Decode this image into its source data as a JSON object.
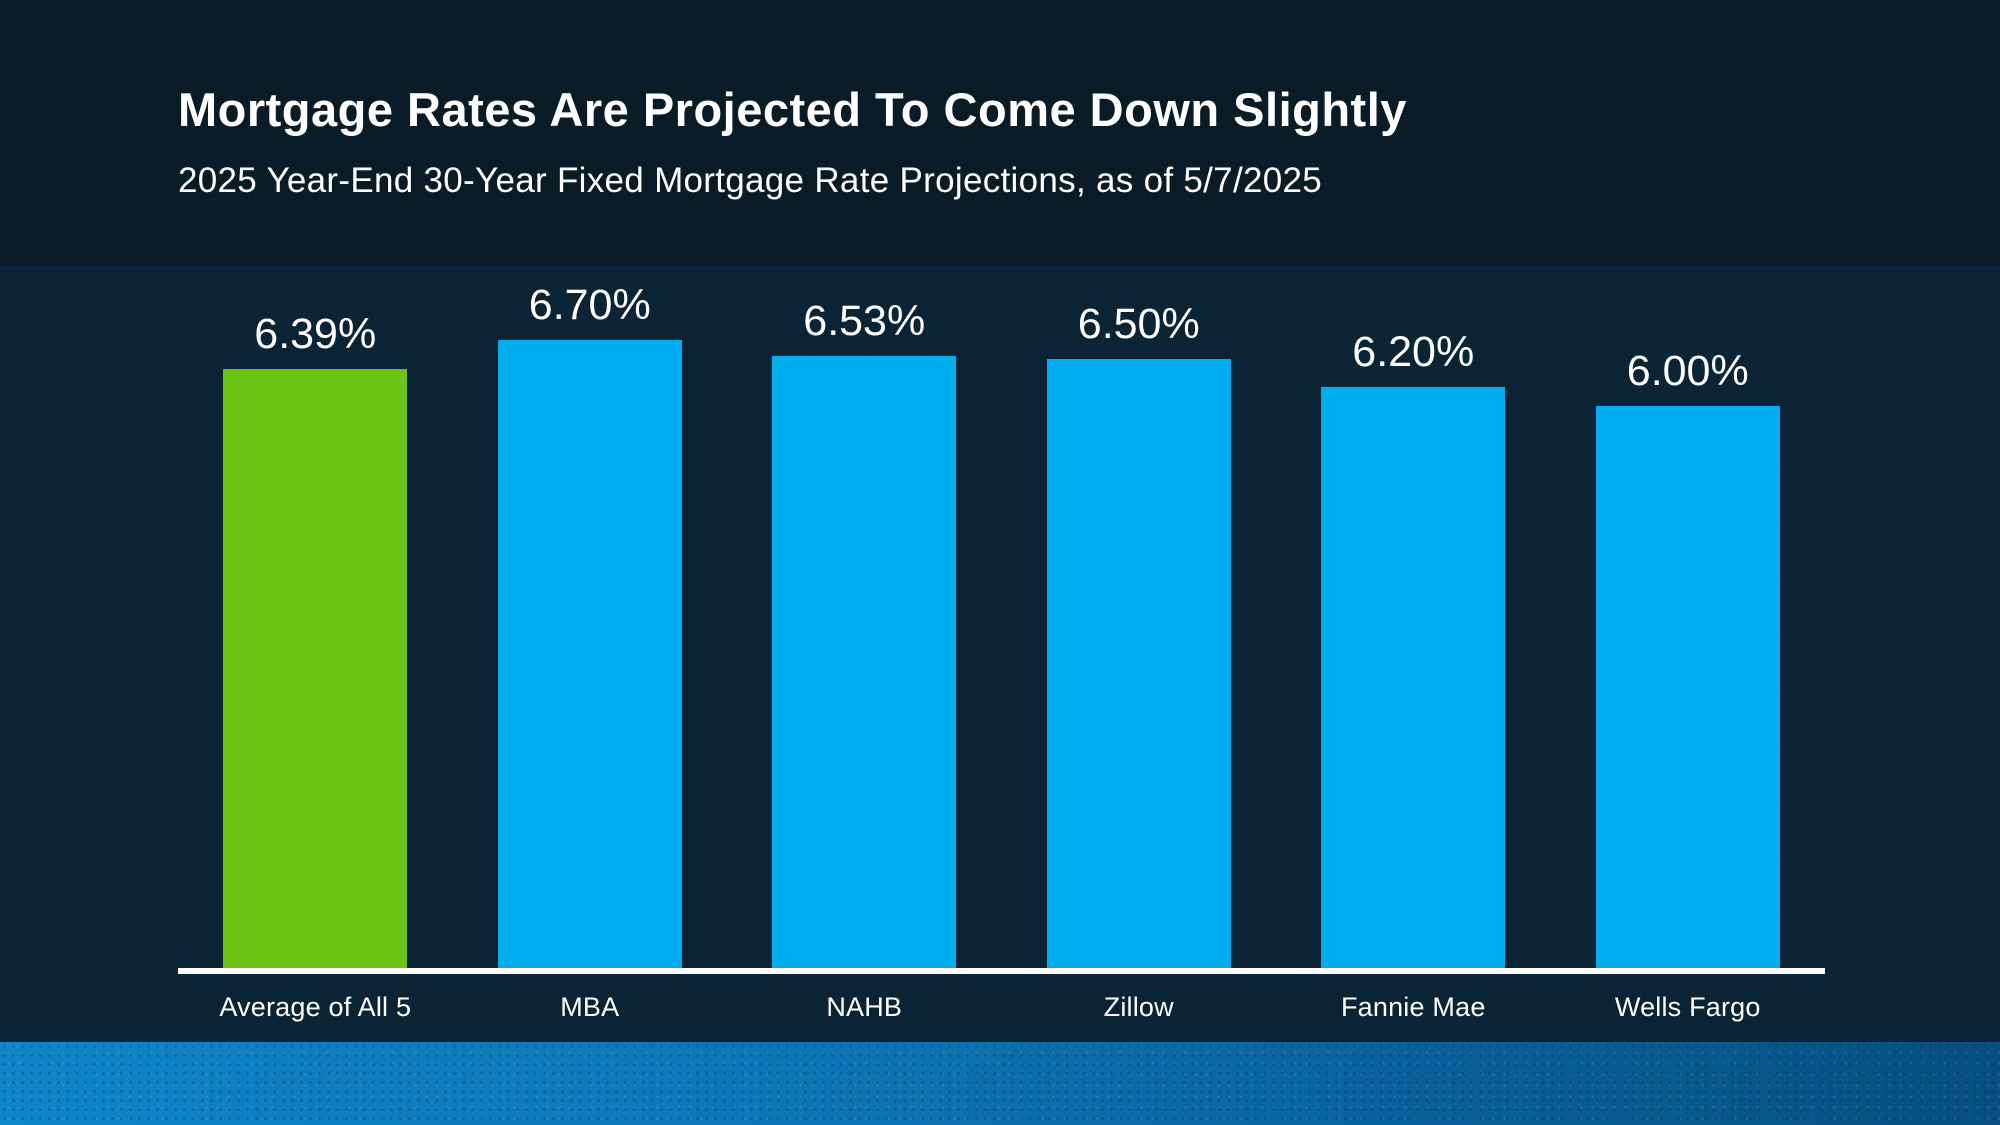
{
  "slide": {
    "title": "Mortgage Rates Are Projected To Come Down Slightly",
    "subtitle": "2025 Year-End 30-Year Fixed Mortgage Rate Projections, as of 5/7/2025"
  },
  "chart_data": {
    "type": "bar",
    "title": "Mortgage Rates Are Projected To Come Down Slightly",
    "subtitle": "2025 Year-End 30-Year Fixed Mortgage Rate Projections, as of 5/7/2025",
    "categories": [
      "Average of All 5",
      "MBA",
      "NAHB",
      "Zillow",
      "Fannie Mae",
      "Wells Fargo"
    ],
    "values": [
      6.39,
      6.7,
      6.53,
      6.5,
      6.2,
      6.0
    ],
    "value_labels": [
      "6.39%",
      "6.70%",
      "6.53%",
      "6.50%",
      "6.20%",
      "6.00%"
    ],
    "bar_colors": [
      "#6cc414",
      "#00aeef",
      "#00aeef",
      "#00aeef",
      "#00aeef",
      "#00aeef"
    ],
    "xlabel": "",
    "ylabel": "",
    "ylim": [
      0,
      7.5
    ],
    "grid": false,
    "legend": "none",
    "value_label_position": "above-bar",
    "baseline_color": "#ffffff"
  },
  "colors": {
    "background_top": "#081b26",
    "panel_background": "#0a2435",
    "highlight_green": "#6cc414",
    "bar_blue": "#00aeef",
    "text": "#ffffff",
    "footer_gradient_left": "#0e86c8",
    "footer_gradient_right": "#064f80"
  }
}
